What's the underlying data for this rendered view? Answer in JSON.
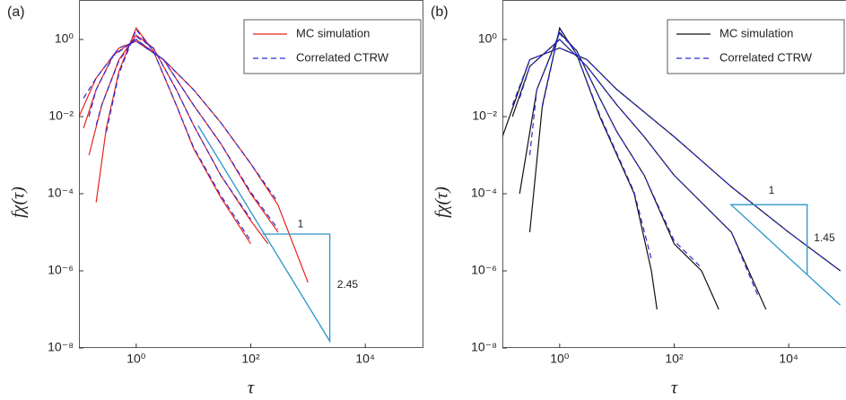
{
  "chart_data": [
    {
      "type": "line",
      "panel_label": "(a)",
      "xlabel": "τ",
      "ylabel": "fχ(τ)",
      "log_x": true,
      "log_y": true,
      "legend": "top-right",
      "xlim": [
        0.1,
        100000
      ],
      "ylim": [
        1e-08,
        10
      ],
      "xticks": [
        {
          "value": 1,
          "label": "10⁰"
        },
        {
          "value": 100,
          "label": "10²"
        },
        {
          "value": 10000,
          "label": "10⁴"
        }
      ],
      "yticks": [
        {
          "value": 1e-08,
          "label": "10⁻⁸"
        },
        {
          "value": 1e-06,
          "label": "10⁻⁶"
        },
        {
          "value": 0.0001,
          "label": "10⁻⁴"
        },
        {
          "value": 0.01,
          "label": "10⁻²"
        },
        {
          "value": 1,
          "label": "10⁰"
        }
      ],
      "series": [
        {
          "name": "MC simulation",
          "color": "#e8231f",
          "dashed": false,
          "curves": [
            {
              "x": [
                0.2,
                0.3,
                0.5,
                1,
                2,
                5,
                10,
                30,
                100
              ],
              "values": [
                6e-05,
                0.005,
                0.15,
                2,
                0.5,
                0.02,
                0.0015,
                8e-05,
                5e-06
              ]
            },
            {
              "x": [
                0.15,
                0.25,
                0.5,
                1,
                2,
                5,
                10,
                30,
                100,
                200
              ],
              "values": [
                0.001,
                0.02,
                0.3,
                1.3,
                0.6,
                0.05,
                0.006,
                0.0003,
                2e-05,
                5e-06
              ]
            },
            {
              "x": [
                0.12,
                0.2,
                0.4,
                1,
                3,
                10,
                30,
                100,
                300
              ],
              "values": [
                0.005,
                0.05,
                0.4,
                1,
                0.3,
                0.02,
                0.002,
                0.0001,
                1e-05
              ]
            },
            {
              "x": [
                0.1,
                0.2,
                0.5,
                1,
                3,
                10,
                30,
                100,
                300,
                1000
              ],
              "values": [
                0.01,
                0.1,
                0.6,
                0.9,
                0.3,
                0.05,
                0.007,
                0.0006,
                5e-05,
                5e-07
              ]
            }
          ]
        },
        {
          "name": "Correlated CTRW",
          "color": "#2a2ad6",
          "dashed": true,
          "curves": [
            {
              "x": [
                0.3,
                0.5,
                1,
                2,
                5,
                10,
                30,
                100
              ],
              "values": [
                0.004,
                0.13,
                1.8,
                0.5,
                0.02,
                0.0016,
                9e-05,
                6e-06
              ]
            },
            {
              "x": [
                0.2,
                0.25,
                0.5,
                1,
                2,
                5,
                10,
                30,
                100
              ],
              "values": [
                0.006,
                0.02,
                0.28,
                1.2,
                0.6,
                0.05,
                0.006,
                0.0003,
                2.2e-05
              ]
            },
            {
              "x": [
                0.15,
                0.2,
                0.4,
                1,
                3,
                10,
                30,
                100,
                300
              ],
              "values": [
                0.01,
                0.05,
                0.38,
                1,
                0.3,
                0.02,
                0.002,
                0.00011,
                1.2e-05
              ]
            },
            {
              "x": [
                0.12,
                0.2,
                0.5,
                1,
                3,
                10,
                30,
                100,
                300
              ],
              "values": [
                0.03,
                0.1,
                0.6,
                0.9,
                0.3,
                0.05,
                0.007,
                0.0006,
                6e-05
              ]
            }
          ]
        }
      ],
      "slope_triangle": {
        "color": "#2a95c8",
        "x": [
          12,
          2400,
          2400,
          160
        ],
        "values": [
          0.0059,
          1.5e-08,
          9e-06,
          9e-06
        ]
      },
      "annotations": [
        {
          "text": "1",
          "x": 740,
          "y": 1.6e-05
        },
        {
          "text": "2.45",
          "x": 4900,
          "y": 4.3e-07
        }
      ]
    },
    {
      "type": "line",
      "panel_label": "(b)",
      "xlabel": "τ",
      "ylabel": "fχ(τ)",
      "log_x": true,
      "log_y": true,
      "legend": "top-right",
      "xlim": [
        0.1,
        100000
      ],
      "ylim": [
        1e-08,
        10
      ],
      "xticks": [
        {
          "value": 1,
          "label": "10⁰"
        },
        {
          "value": 100,
          "label": "10²"
        },
        {
          "value": 10000,
          "label": "10⁴"
        }
      ],
      "yticks": [
        {
          "value": 1e-08,
          "label": "10⁻⁸"
        },
        {
          "value": 1e-06,
          "label": "10⁻⁶"
        },
        {
          "value": 0.0001,
          "label": "10⁻⁴"
        },
        {
          "value": 0.01,
          "label": "10⁻²"
        },
        {
          "value": 1,
          "label": "10⁰"
        }
      ],
      "series": [
        {
          "name": "MC simulation",
          "color": "#111111",
          "dashed": false,
          "curves": [
            {
              "x": [
                0.3,
                0.5,
                1,
                2,
                5,
                10,
                20,
                40,
                50
              ],
              "values": [
                1e-05,
                0.02,
                2,
                0.4,
                0.01,
                0.001,
                0.0001,
                1e-06,
                1e-07
              ]
            },
            {
              "x": [
                0.2,
                0.4,
                1,
                2,
                5,
                10,
                30,
                100,
                300,
                600
              ],
              "values": [
                0.0001,
                0.05,
                1.5,
                0.5,
                0.03,
                0.004,
                0.0003,
                5e-06,
                1e-06,
                1e-07
              ]
            },
            {
              "x": [
                0.15,
                0.3,
                1,
                3,
                10,
                30,
                100,
                1000,
                4000
              ],
              "values": [
                0.01,
                0.2,
                1,
                0.2,
                0.02,
                0.003,
                0.0003,
                1e-05,
                1e-07
              ]
            },
            {
              "x": [
                0.1,
                0.3,
                1,
                3,
                10,
                100,
                1000,
                10000,
                80000
              ],
              "values": [
                0.003,
                0.3,
                0.6,
                0.3,
                0.05,
                0.003,
                0.00015,
                1e-05,
                1e-06
              ]
            }
          ]
        },
        {
          "name": "Correlated CTRW",
          "color": "#2a2ad6",
          "dashed": true,
          "curves": [
            {
              "x": [
                0.5,
                1,
                2,
                5,
                10,
                20,
                40
              ],
              "values": [
                0.018,
                1.9,
                0.4,
                0.011,
                0.0011,
                0.00011,
                2e-06
              ]
            },
            {
              "x": [
                0.3,
                0.4,
                1,
                2,
                5,
                10,
                30,
                100,
                300
              ],
              "values": [
                0.001,
                0.05,
                1.4,
                0.5,
                0.03,
                0.004,
                0.0003,
                6e-06,
                1.2e-06
              ]
            },
            {
              "x": [
                0.2,
                0.3,
                1,
                3,
                10,
                30,
                100,
                1000,
                3000
              ],
              "values": [
                0.03,
                0.2,
                1,
                0.2,
                0.02,
                0.003,
                0.0003,
                1e-05,
                2e-07
              ]
            },
            {
              "x": [
                0.15,
                0.3,
                1,
                3,
                10,
                100,
                1000,
                10000,
                80000
              ],
              "values": [
                0.02,
                0.3,
                0.6,
                0.3,
                0.05,
                0.003,
                0.00015,
                1e-05,
                1e-06
              ]
            }
          ]
        }
      ],
      "slope_triangle": {
        "color": "#2a95c8",
        "x": [
          79000,
          980,
          21000,
          21000
        ],
        "values": [
          1.3e-07,
          5.2e-05,
          5.2e-05,
          8e-07
        ]
      },
      "annotations": [
        {
          "text": "1",
          "x": 5000,
          "y": 0.00012
        },
        {
          "text": "1.45",
          "x": 42000,
          "y": 7e-06
        }
      ]
    }
  ]
}
